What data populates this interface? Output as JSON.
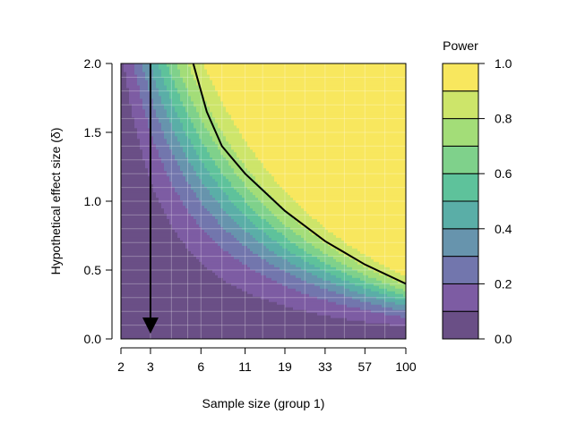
{
  "chart_data": {
    "type": "heatmap",
    "title": "",
    "xlabel": "Sample size (group 1)",
    "ylabel": "Hypothetical effect size (δ)",
    "x_scale": "log",
    "xlim": [
      2,
      100
    ],
    "ylim": [
      0,
      2
    ],
    "x_ticks": [
      2,
      3,
      6,
      11,
      19,
      33,
      57,
      100
    ],
    "y_ticks": [
      0.0,
      0.5,
      1.0,
      1.5,
      2.0
    ],
    "y_tick_labels": [
      "0.0",
      "0.5",
      "1.0",
      "1.5",
      "2.0"
    ],
    "grid": true,
    "z_label": "Power",
    "color_levels": [
      0.0,
      0.1,
      0.2,
      0.3,
      0.4,
      0.5,
      0.6,
      0.7,
      0.8,
      0.9,
      1.0
    ],
    "colorbar_ticks": [
      0.0,
      0.2,
      0.4,
      0.6,
      0.8,
      1.0
    ],
    "colorbar_tick_labels": [
      "0.0",
      "0.2",
      "0.4",
      "0.6",
      "0.8",
      "1.0"
    ],
    "legend_position": "right",
    "level_colors": [
      "#6a4f86",
      "#7d5ca3",
      "#7276ad",
      "#6794ad",
      "#5aaea7",
      "#5ec29b",
      "#7fd18b",
      "#a3dd78",
      "#cde56a",
      "#f8e75e"
    ],
    "contour_line_level": 0.8,
    "contour_line_points": [
      {
        "x": 5.4,
        "y": 2.0
      },
      {
        "x": 6.5,
        "y": 1.65
      },
      {
        "x": 8.0,
        "y": 1.4
      },
      {
        "x": 11,
        "y": 1.2
      },
      {
        "x": 19,
        "y": 0.93
      },
      {
        "x": 33,
        "y": 0.71
      },
      {
        "x": 57,
        "y": 0.54
      },
      {
        "x": 100,
        "y": 0.4
      }
    ],
    "annotation_arrow": {
      "x": 3,
      "y_from": 2.0,
      "y_to": 0.05
    }
  }
}
